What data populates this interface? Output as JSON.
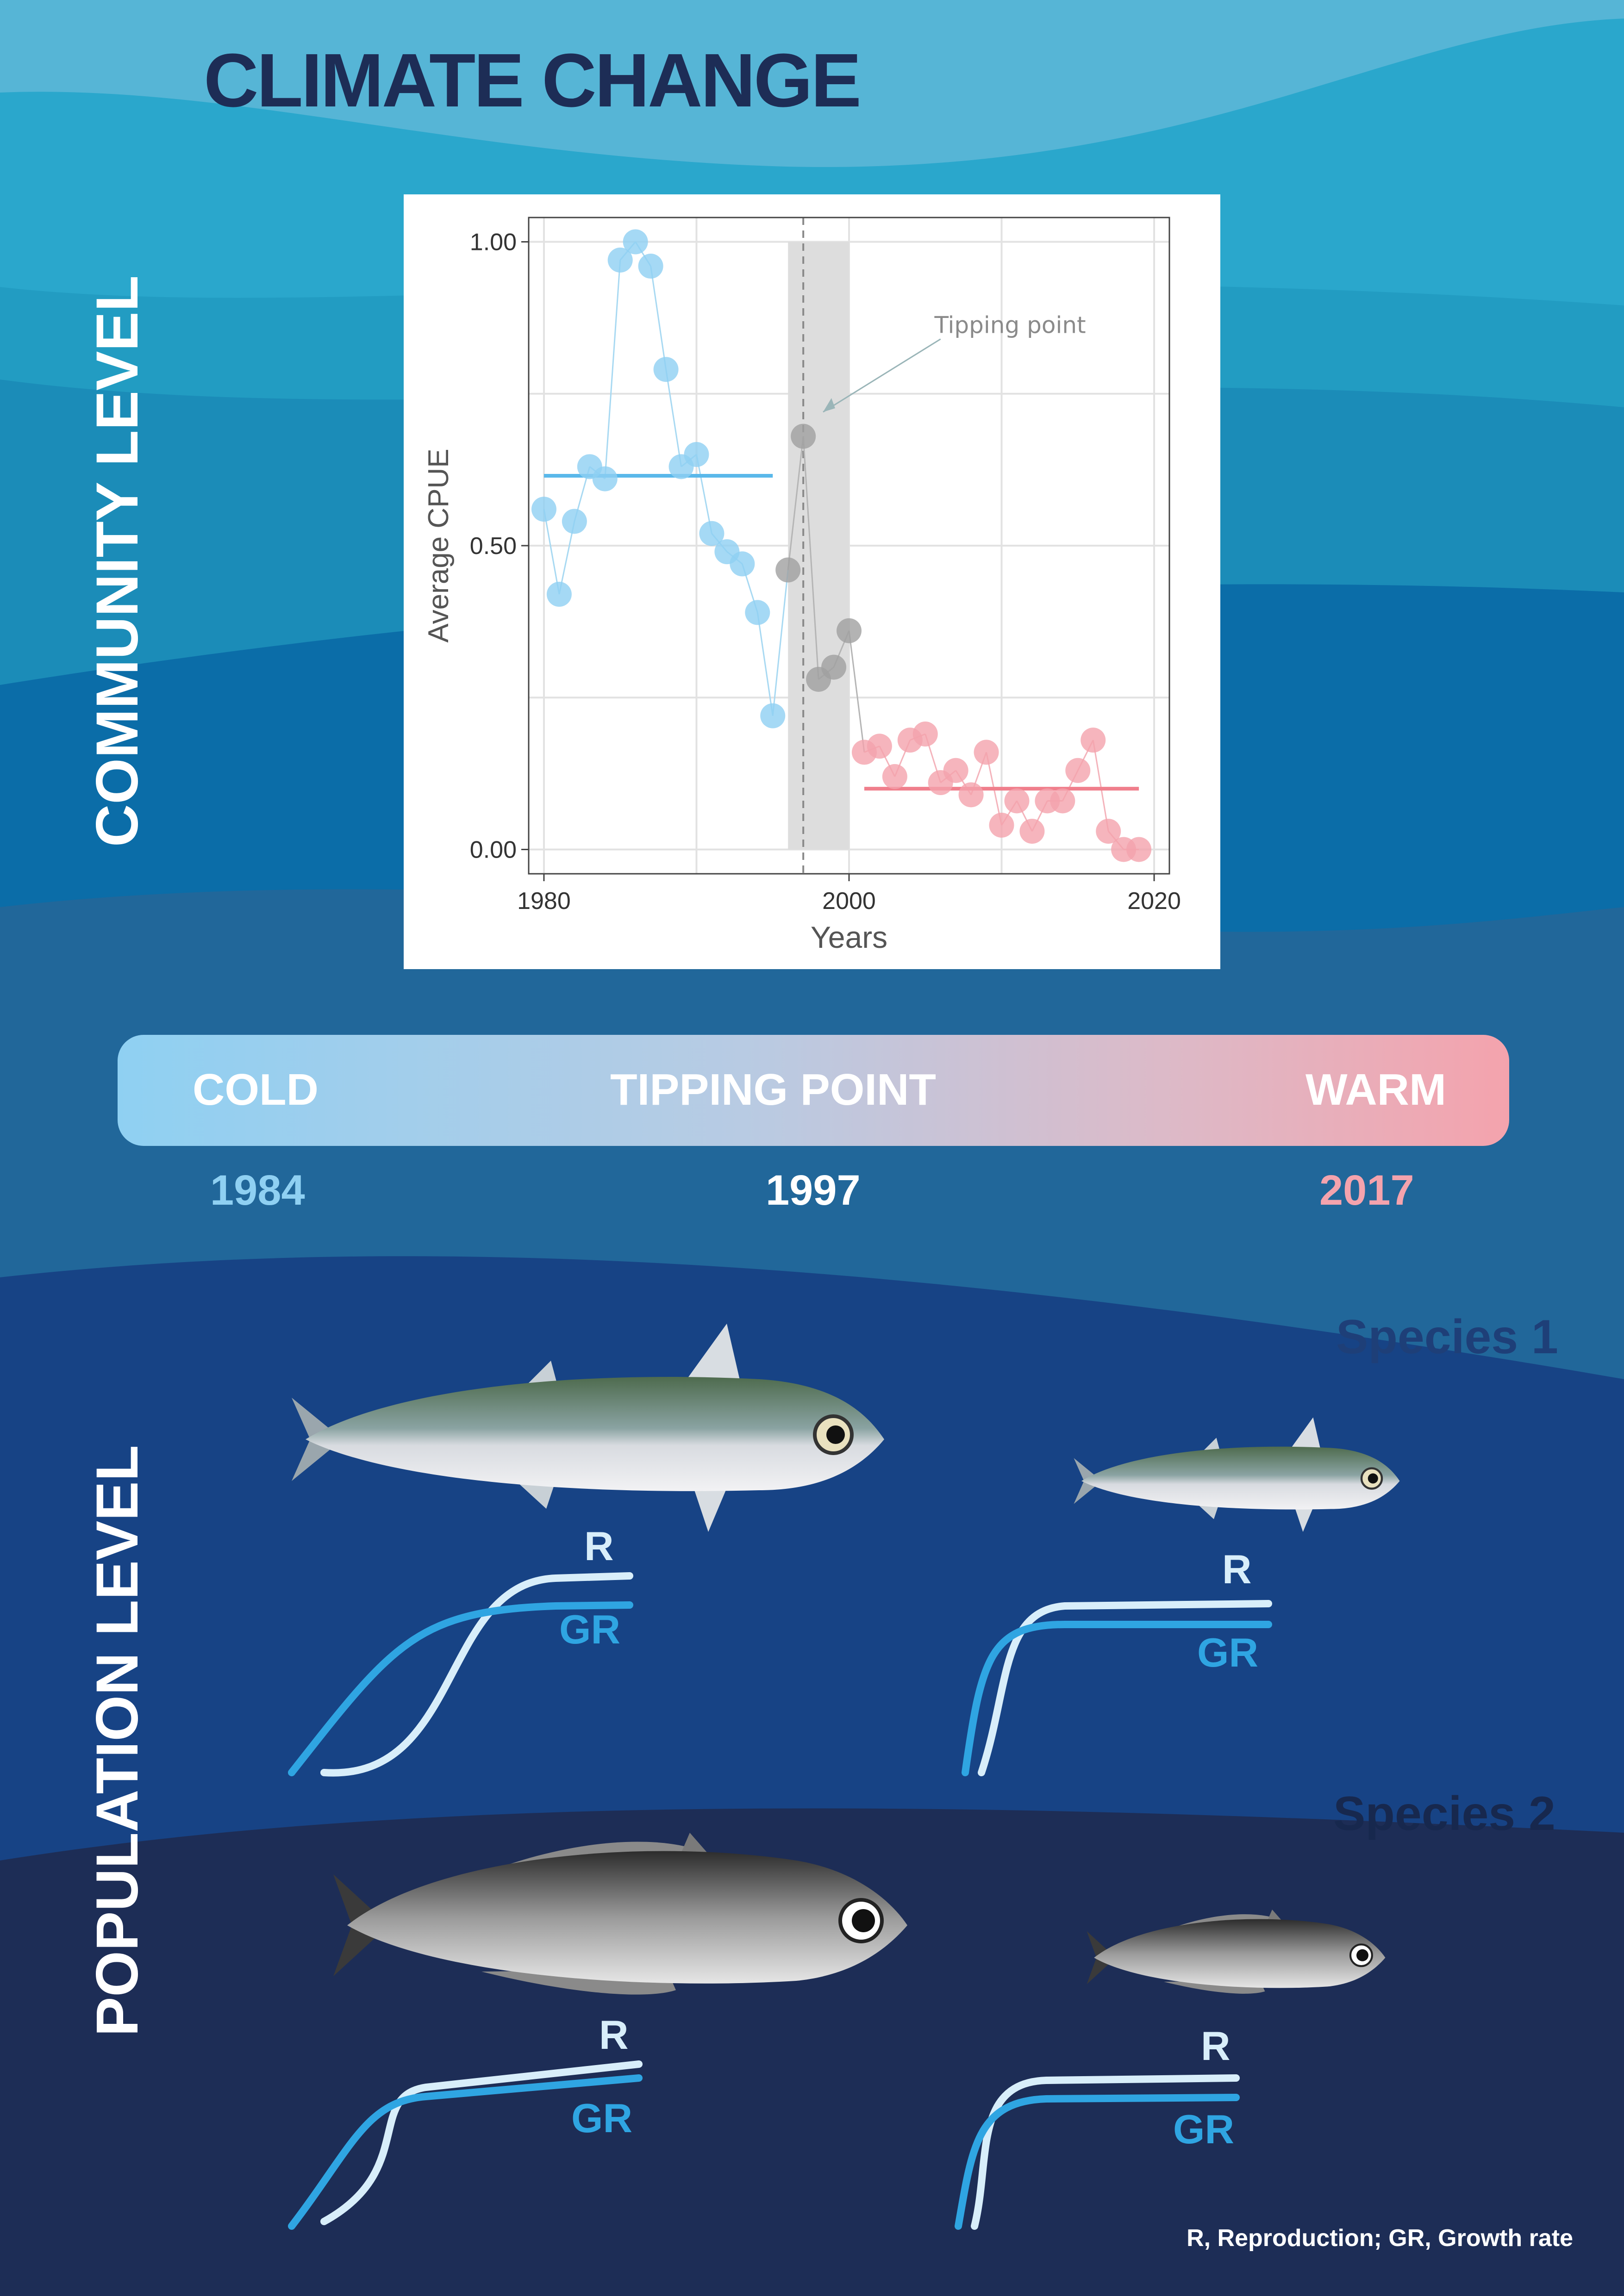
{
  "title": "CLIMATE CHANGE",
  "side_labels": {
    "community": "COMMUNITY  LEVEL",
    "population": "POPULATION  LEVEL"
  },
  "gradient_bar": {
    "left": "COLD",
    "center": "TIPPING POINT",
    "right": "WARM"
  },
  "years": {
    "cold": "1984",
    "tipping": "1997",
    "warm": "2017"
  },
  "colors": {
    "cold": "#8fd0f2",
    "tipping": "#a0a0a0",
    "warm": "#f4a3ad",
    "title": "#1d2d56",
    "curve_r": "#d8eefa",
    "curve_gr": "#2fa5e2"
  },
  "species": {
    "s1": "Species 1",
    "s2": "Species 2"
  },
  "curves": {
    "r": "R",
    "gr": "GR"
  },
  "footnote": "R, Reproduction; GR, Growth rate",
  "chart_data": {
    "type": "scatter",
    "xlabel": "Years",
    "ylabel": "Average CPUE",
    "xlim": [
      1979,
      2021
    ],
    "ylim": [
      -0.04,
      1.04
    ],
    "xticks": [
      "1980",
      "2000",
      "2020"
    ],
    "yticks": [
      "0.00",
      "0.50",
      "1.00"
    ],
    "grid": true,
    "annotation": "Tipping point",
    "tipping_year": 1997,
    "shaded_range": [
      1996,
      2000
    ],
    "series": [
      {
        "id": "cold",
        "x": [
          1980,
          1981,
          1982,
          1983,
          1984,
          1985,
          1986,
          1987,
          1988,
          1989,
          1990,
          1991,
          1992,
          1993,
          1994,
          1995
        ],
        "values": [
          0.56,
          0.42,
          0.54,
          0.63,
          0.61,
          0.97,
          1.0,
          0.96,
          0.79,
          0.63,
          0.65,
          0.52,
          0.49,
          0.47,
          0.39,
          0.22
        ],
        "mean": 0.615,
        "mean_range": [
          1980,
          1995
        ]
      },
      {
        "id": "tipping",
        "x": [
          1996,
          1997,
          1998,
          1999,
          2000
        ],
        "values": [
          0.46,
          0.68,
          0.28,
          0.3,
          0.36
        ]
      },
      {
        "id": "warm",
        "x": [
          2001,
          2002,
          2003,
          2004,
          2005,
          2006,
          2007,
          2008,
          2009,
          2010,
          2011,
          2012,
          2013,
          2014,
          2015,
          2016,
          2017,
          2018,
          2019
        ],
        "values": [
          0.16,
          0.17,
          0.12,
          0.18,
          0.19,
          0.11,
          0.13,
          0.09,
          0.16,
          0.04,
          0.08,
          0.03,
          0.08,
          0.08,
          0.13,
          0.18,
          0.03,
          0.0,
          0.0
        ],
        "mean": 0.1,
        "mean_range": [
          2001,
          2019
        ]
      }
    ]
  }
}
